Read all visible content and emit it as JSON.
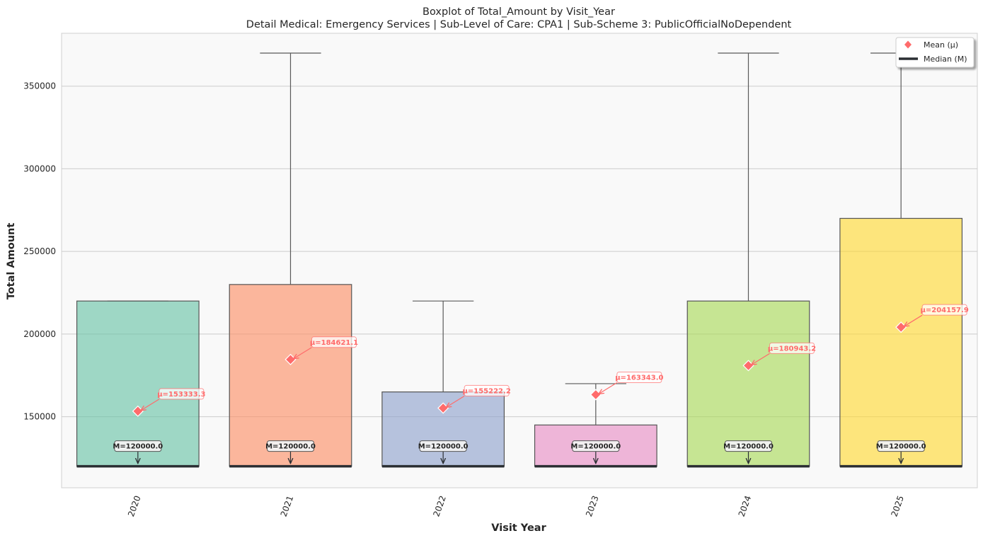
{
  "chart_data": {
    "type": "box",
    "title": "Boxplot of Total_Amount by Visit_Year",
    "subtitle": "Detail Medical: Emergency Services | Sub-Level of Care: CPA1 | Sub-Scheme 3: PublicOfficialNoDependent",
    "xlabel": "Visit Year",
    "ylabel": "Total Amount",
    "ylim": [
      107000,
      382000
    ],
    "yticks": [
      150000,
      200000,
      250000,
      300000,
      350000
    ],
    "ytick_labels": [
      "150000",
      "200000",
      "250000",
      "300000",
      "350000"
    ],
    "grid": "horizontal",
    "legend_position": "top-right",
    "legend": [
      {
        "label": "Mean (μ)",
        "marker": "diamond",
        "color": "#ff6b6b"
      },
      {
        "label": "Median (M)",
        "marker": "line",
        "color": "#2b2f33"
      }
    ],
    "categories": [
      "2020",
      "2021",
      "2022",
      "2023",
      "2024",
      "2025"
    ],
    "boxes": [
      {
        "category": "2020",
        "whisker_low": 120000,
        "q1": 120000,
        "median": 120000,
        "q3": 220000,
        "whisker_high": 220000,
        "mean": 153333.3,
        "color": "#66c2a5",
        "median_label": "M=120000.0",
        "mean_label": "μ=153333.3"
      },
      {
        "category": "2021",
        "whisker_low": 120000,
        "q1": 120000,
        "median": 120000,
        "q3": 230000,
        "whisker_high": 370000,
        "mean": 184621.1,
        "color": "#fc8d62",
        "median_label": "M=120000.0",
        "mean_label": "μ=184621.1"
      },
      {
        "category": "2022",
        "whisker_low": 120000,
        "q1": 120000,
        "median": 120000,
        "q3": 165000,
        "whisker_high": 220000,
        "mean": 155222.2,
        "color": "#8da0cb",
        "median_label": "M=120000.0",
        "mean_label": "μ=155222.2"
      },
      {
        "category": "2023",
        "whisker_low": 120000,
        "q1": 120000,
        "median": 120000,
        "q3": 145000,
        "whisker_high": 170000,
        "mean": 163343.0,
        "color": "#e78ac3",
        "median_label": "M=120000.0",
        "mean_label": "μ=163343.0"
      },
      {
        "category": "2024",
        "whisker_low": 120000,
        "q1": 120000,
        "median": 120000,
        "q3": 220000,
        "whisker_high": 370000,
        "mean": 180943.2,
        "color": "#a6d854",
        "median_label": "M=120000.0",
        "mean_label": "μ=180943.2"
      },
      {
        "category": "2025",
        "whisker_low": 120000,
        "q1": 120000,
        "median": 120000,
        "q3": 270000,
        "whisker_high": 370000,
        "mean": 204157.9,
        "color": "#ffd92f",
        "median_label": "M=120000.0",
        "mean_label": "μ=204157.9"
      }
    ],
    "colors": {
      "mean": "#ff6b6b",
      "median": "#2b2f33",
      "whisker": "#5a5a5a",
      "plot_background": "#f9f9f9",
      "grid": "#cccccc"
    }
  }
}
